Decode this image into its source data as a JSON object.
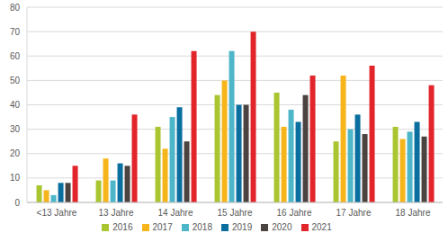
{
  "chart_data": {
    "type": "bar",
    "categories": [
      "<13 Jahre",
      "13 Jahre",
      "14 Jahre",
      "15 Jahre",
      "16 Jahre",
      "17 Jahre",
      "18 Jahre"
    ],
    "series": [
      {
        "name": "2016",
        "color": "#a9c52f",
        "values": [
          7,
          9,
          31,
          44,
          45,
          25,
          31
        ]
      },
      {
        "name": "2017",
        "color": "#f7b51c",
        "values": [
          5,
          18,
          22,
          50,
          31,
          52,
          26
        ]
      },
      {
        "name": "2018",
        "color": "#4db6c9",
        "values": [
          3,
          9,
          35,
          62,
          38,
          30,
          29
        ]
      },
      {
        "name": "2019",
        "color": "#0a6e9e",
        "values": [
          8,
          16,
          39,
          40,
          33,
          36,
          33
        ]
      },
      {
        "name": "2020",
        "color": "#4a4340",
        "values": [
          8,
          15,
          25,
          40,
          44,
          28,
          27
        ]
      },
      {
        "name": "2021",
        "color": "#e2242b",
        "values": [
          15,
          36,
          62,
          70,
          52,
          56,
          48
        ]
      }
    ],
    "ylim": [
      0,
      80
    ],
    "yticks": [
      0,
      10,
      20,
      30,
      40,
      50,
      60,
      70,
      80
    ],
    "grid": true,
    "legend": "bottom"
  }
}
